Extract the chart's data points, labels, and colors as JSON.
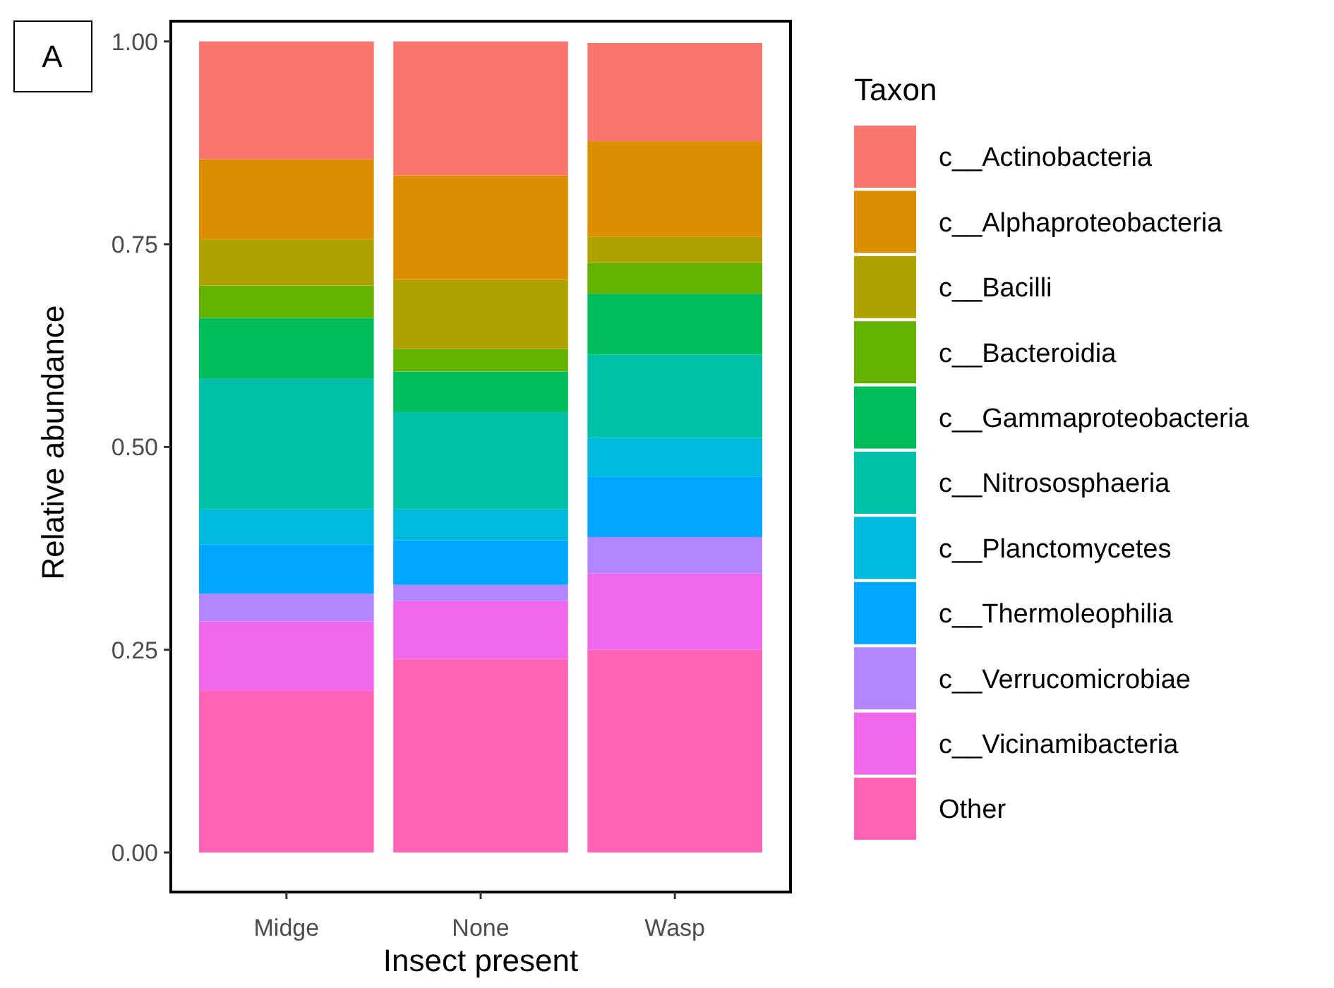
{
  "chart_data": {
    "type": "bar",
    "stacked": true,
    "xlabel": "Insect present",
    "ylabel": "Relative abundance",
    "legend_title": "Taxon",
    "legend": "right",
    "grid": false,
    "categories": [
      "Midge",
      "None",
      "Wasp"
    ],
    "ylim": [
      0,
      1.025
    ],
    "yticks": [
      {
        "value": 0,
        "label": "0.00"
      },
      {
        "value": 0.25,
        "label": "0.25"
      },
      {
        "value": 0.5,
        "label": "0.50"
      },
      {
        "value": 0.75,
        "label": "0.75"
      },
      {
        "value": 1,
        "label": "1.00"
      }
    ],
    "annotations": [
      "A"
    ],
    "series": [
      {
        "name": "Other",
        "color": "#ff63b6",
        "values": [
          0.2,
          0.239,
          0.25
        ]
      },
      {
        "name": "c__Vicinamibacteria",
        "color": "#ef67eb",
        "values": [
          0.085,
          0.071,
          0.094
        ]
      },
      {
        "name": "c__Verrucomicrobiae",
        "color": "#b385ff",
        "values": [
          0.034,
          0.02,
          0.045
        ]
      },
      {
        "name": "c__Thermoleophilia",
        "color": "#00a6ff",
        "values": [
          0.061,
          0.055,
          0.074
        ]
      },
      {
        "name": "c__Planctomycetes",
        "color": "#00bade",
        "values": [
          0.043,
          0.038,
          0.048
        ]
      },
      {
        "name": "c__Nitrososphaeria",
        "color": "#00c1a7",
        "values": [
          0.161,
          0.12,
          0.103
        ]
      },
      {
        "name": "c__Gammaproteobacteria",
        "color": "#00bd5c",
        "values": [
          0.075,
          0.05,
          0.075
        ]
      },
      {
        "name": "c__Bacteroidia",
        "color": "#64b200",
        "values": [
          0.04,
          0.028,
          0.038
        ]
      },
      {
        "name": "c__Bacilli",
        "color": "#aea200",
        "values": [
          0.057,
          0.085,
          0.032
        ]
      },
      {
        "name": "c__Alphaproteobacteria",
        "color": "#db8e00",
        "values": [
          0.099,
          0.129,
          0.118
        ]
      },
      {
        "name": "c__Actinobacteria",
        "color": "#f8766d",
        "values": [
          0.145,
          0.165,
          0.121
        ]
      }
    ]
  }
}
